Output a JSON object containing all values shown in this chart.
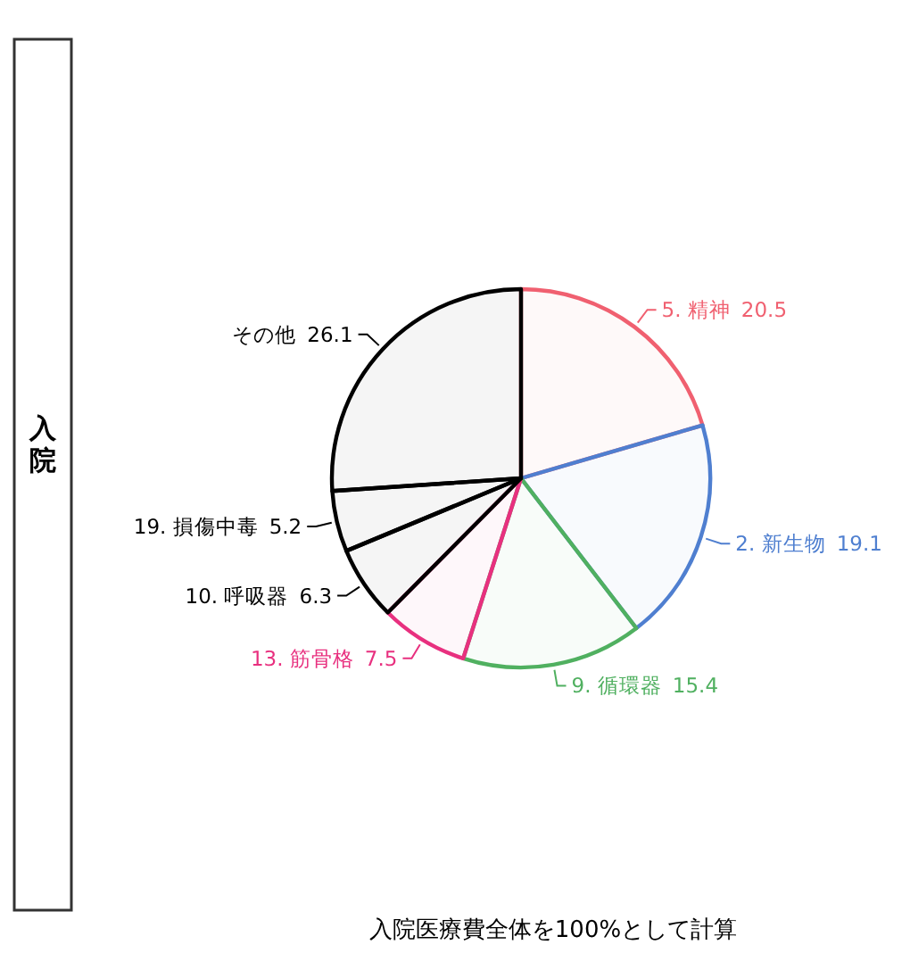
{
  "chart_data": {
    "type": "pie",
    "categories": [
      "5. 精神",
      "2. 新生物",
      "9. 循環器",
      "13. 筋骨格",
      "10. 呼吸器",
      "19. 損傷中毒",
      "その他"
    ],
    "values": [
      20.5,
      19.1,
      15.4,
      7.5,
      6.3,
      5.2,
      26.1
    ],
    "colors": [
      "#f06070",
      "#4f7fd0",
      "#50b060",
      "#e8307f",
      "#000000",
      "#000000",
      "#000000"
    ],
    "data_labels": true,
    "annotations": [
      "入院",
      "入院医療費全体を100%として計算"
    ]
  }
}
